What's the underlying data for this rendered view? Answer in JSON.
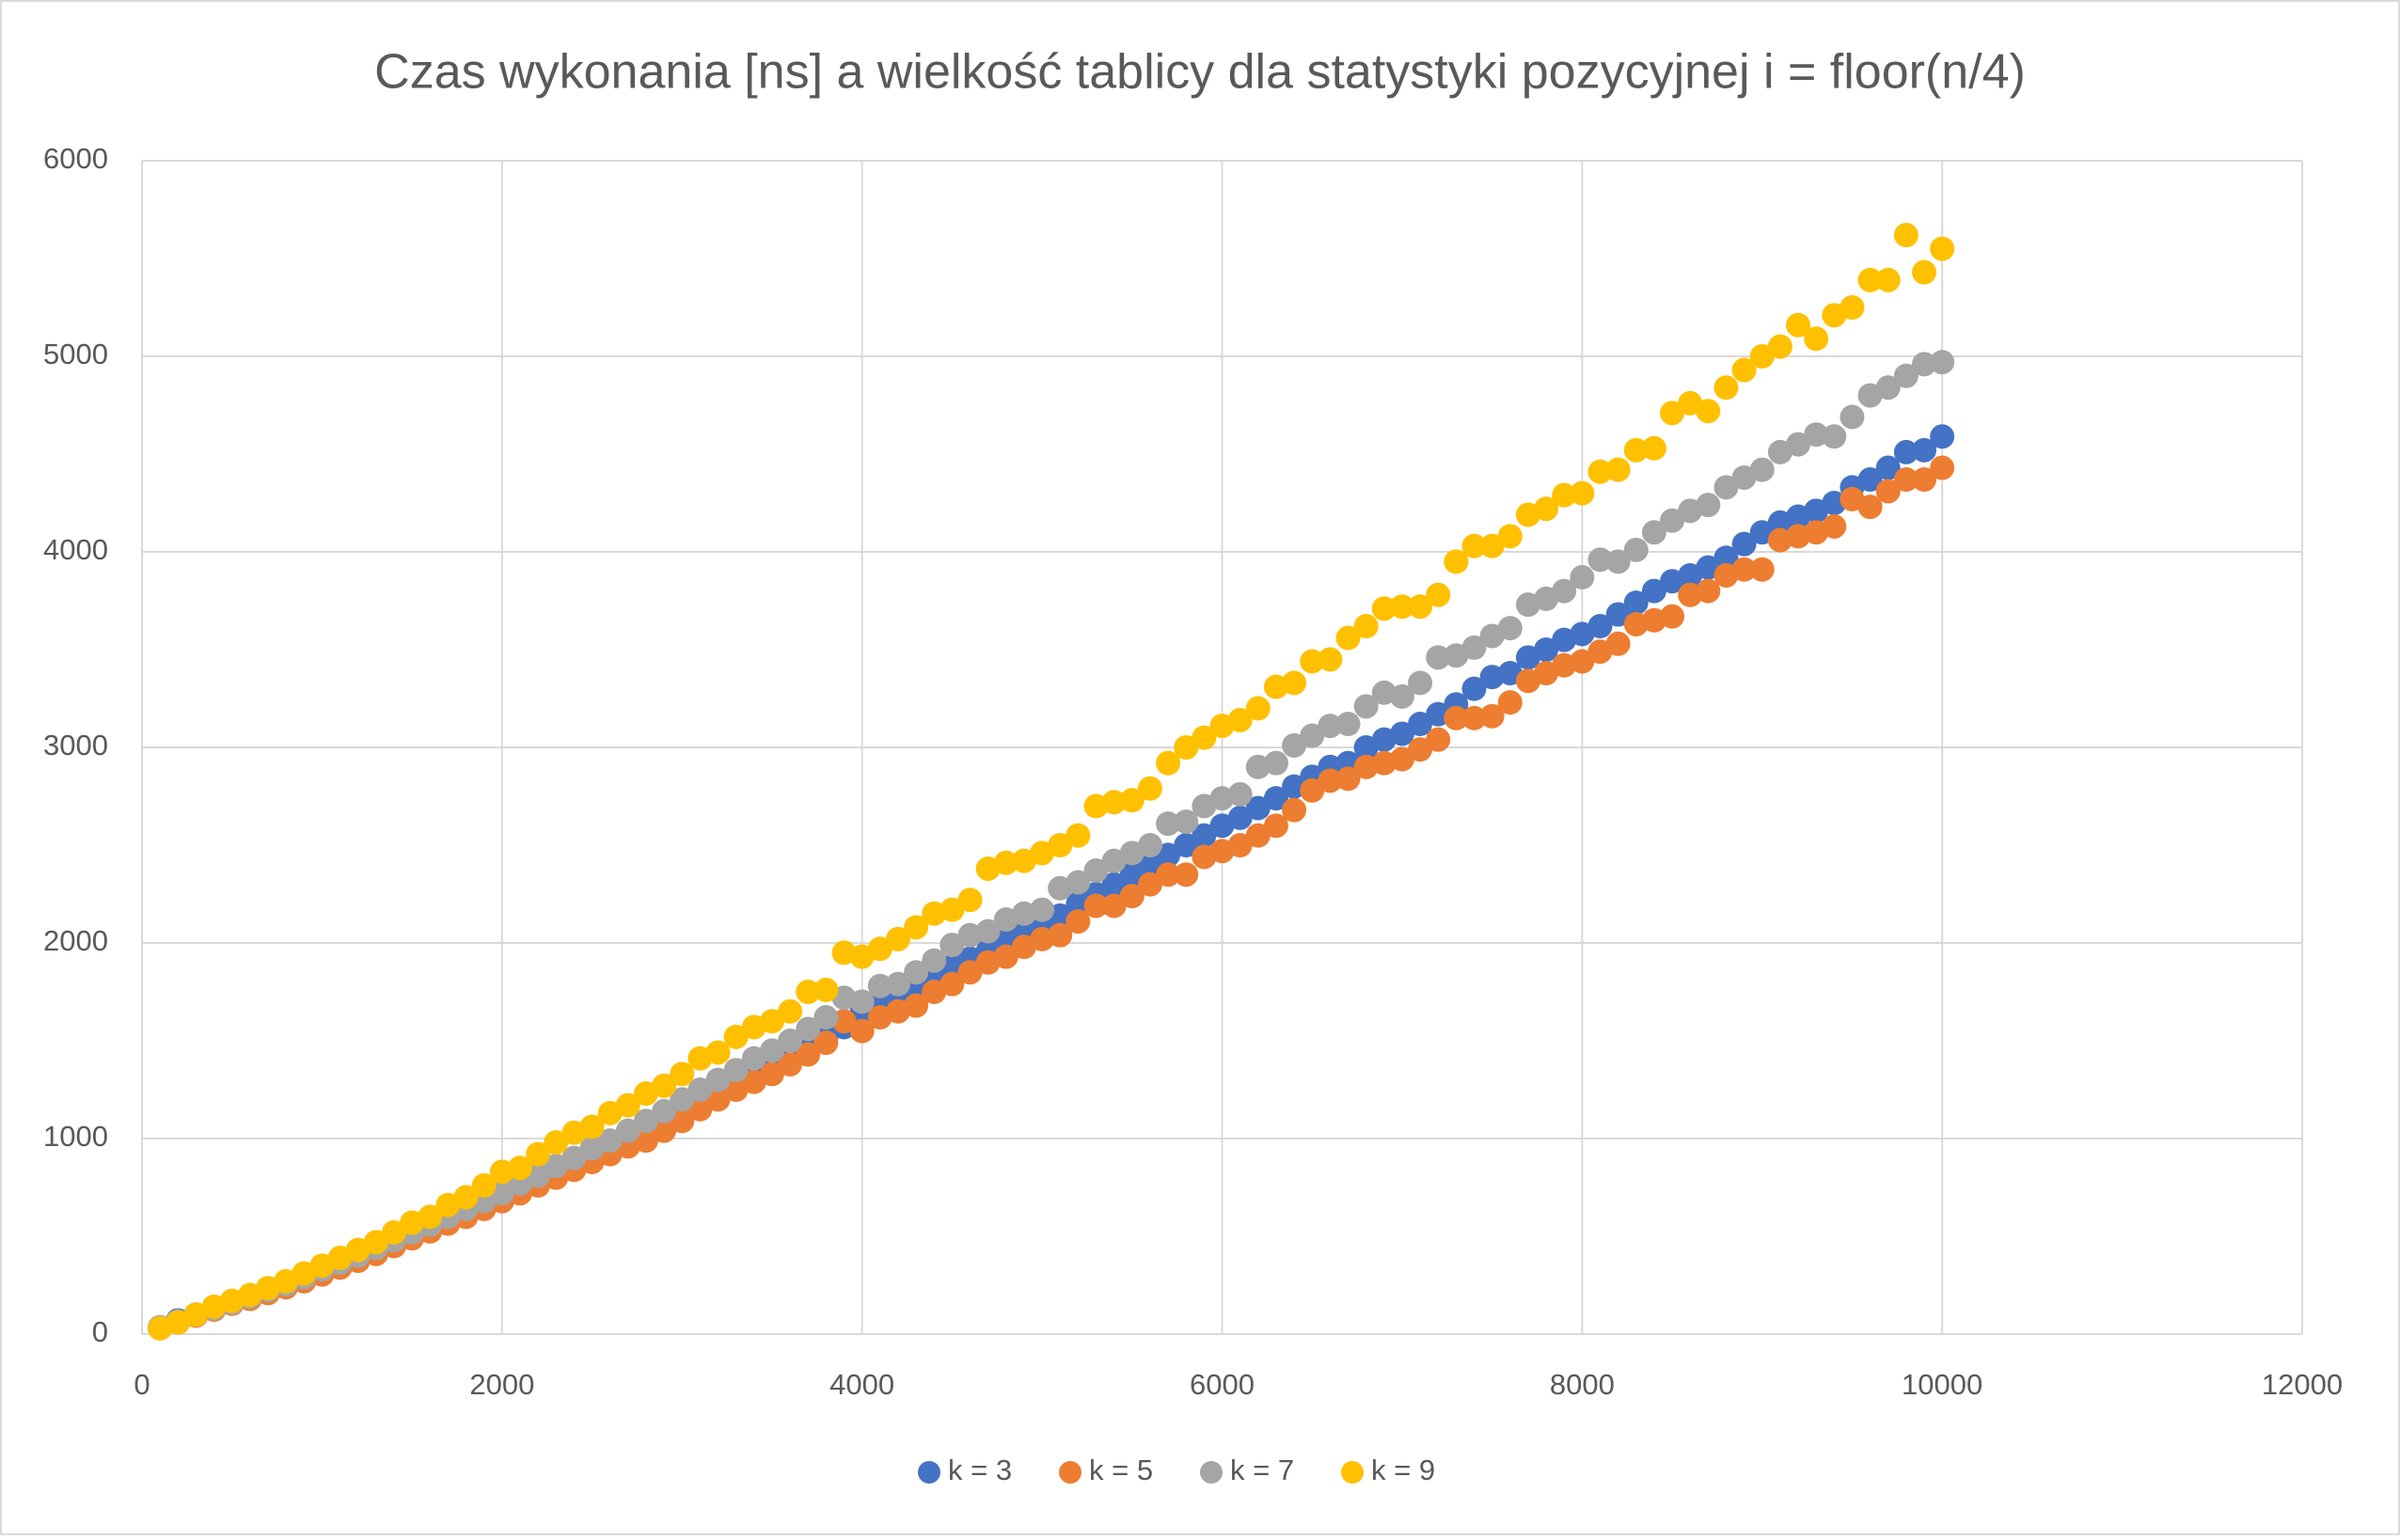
{
  "chart_data": {
    "type": "scatter",
    "title": "Czas wykonania [ns] a wielkość tablicy dla statystyki pozycyjnej i = floor(n/4)",
    "x": [
      100,
      200,
      300,
      400,
      500,
      600,
      700,
      800,
      900,
      1000,
      1100,
      1200,
      1300,
      1400,
      1500,
      1600,
      1700,
      1800,
      1900,
      2000,
      2100,
      2200,
      2300,
      2400,
      2500,
      2600,
      2700,
      2800,
      2900,
      3000,
      3100,
      3200,
      3300,
      3400,
      3500,
      3600,
      3700,
      3800,
      3900,
      4000,
      4100,
      4200,
      4300,
      4400,
      4500,
      4600,
      4700,
      4800,
      4900,
      5000,
      5100,
      5200,
      5300,
      5400,
      5500,
      5600,
      5700,
      5800,
      5900,
      6000,
      6100,
      6200,
      6300,
      6400,
      6500,
      6600,
      6700,
      6800,
      6900,
      7000,
      7100,
      7200,
      7300,
      7400,
      7500,
      7600,
      7700,
      7800,
      7900,
      8000,
      8100,
      8200,
      8300,
      8400,
      8500,
      8600,
      8700,
      8800,
      8900,
      9000,
      9100,
      9200,
      9300,
      9400,
      9500,
      9600,
      9700,
      9800,
      9900,
      10000
    ],
    "series": [
      {
        "name": "k = 3",
        "color": "#4472c4",
        "values": [
          35,
          70,
          100,
          130,
          160,
          190,
          215,
          245,
          280,
          320,
          355,
          390,
          430,
          465,
          505,
          545,
          580,
          620,
          660,
          700,
          740,
          780,
          825,
          865,
          910,
          950,
          995,
          1040,
          1090,
          1140,
          1185,
          1230,
          1275,
          1325,
          1370,
          1420,
          1470,
          1520,
          1570,
          1650,
          1700,
          1740,
          1790,
          1830,
          1880,
          1920,
          1960,
          2010,
          2050,
          2100,
          2140,
          2200,
          2250,
          2300,
          2350,
          2400,
          2450,
          2500,
          2550,
          2600,
          2640,
          2690,
          2740,
          2800,
          2850,
          2900,
          2920,
          3000,
          3040,
          3070,
          3120,
          3170,
          3220,
          3300,
          3360,
          3380,
          3460,
          3500,
          3550,
          3580,
          3620,
          3680,
          3740,
          3800,
          3850,
          3880,
          3920,
          3970,
          4040,
          4100,
          4150,
          4180,
          4210,
          4250,
          4330,
          4370,
          4430,
          4510,
          4520,
          4590
        ]
      },
      {
        "name": "k = 5",
        "color": "#ed7d31",
        "values": [
          30,
          60,
          95,
          125,
          155,
          180,
          210,
          240,
          270,
          305,
          340,
          375,
          410,
          450,
          490,
          525,
          565,
          600,
          640,
          680,
          720,
          760,
          800,
          840,
          880,
          920,
          960,
          990,
          1040,
          1090,
          1150,
          1200,
          1250,
          1290,
          1330,
          1380,
          1430,
          1490,
          1600,
          1550,
          1620,
          1650,
          1680,
          1750,
          1790,
          1850,
          1900,
          1930,
          1980,
          2020,
          2040,
          2110,
          2190,
          2190,
          2240,
          2300,
          2350,
          2350,
          2440,
          2470,
          2500,
          2550,
          2600,
          2680,
          2780,
          2830,
          2840,
          2900,
          2920,
          2940,
          2990,
          3040,
          3150,
          3150,
          3160,
          3230,
          3340,
          3380,
          3420,
          3440,
          3490,
          3530,
          3630,
          3650,
          3670,
          3780,
          3800,
          3880,
          3910,
          3910,
          4060,
          4080,
          4100,
          4130,
          4270,
          4230,
          4310,
          4370,
          4370,
          4430
        ]
      },
      {
        "name": "k = 7",
        "color": "#a5a5a5",
        "values": [
          35,
          65,
          100,
          130,
          160,
          190,
          225,
          255,
          290,
          330,
          365,
          400,
          440,
          480,
          520,
          560,
          600,
          640,
          680,
          720,
          770,
          810,
          860,
          900,
          950,
          990,
          1040,
          1090,
          1140,
          1200,
          1250,
          1300,
          1350,
          1410,
          1450,
          1500,
          1560,
          1620,
          1720,
          1700,
          1780,
          1790,
          1850,
          1910,
          1990,
          2040,
          2060,
          2120,
          2150,
          2170,
          2280,
          2310,
          2370,
          2420,
          2460,
          2500,
          2610,
          2620,
          2700,
          2740,
          2760,
          2900,
          2920,
          3010,
          3060,
          3110,
          3120,
          3210,
          3280,
          3260,
          3330,
          3460,
          3470,
          3510,
          3570,
          3610,
          3730,
          3760,
          3800,
          3870,
          3960,
          3950,
          4010,
          4100,
          4160,
          4210,
          4240,
          4330,
          4380,
          4420,
          4510,
          4550,
          4600,
          4590,
          4690,
          4800,
          4840,
          4900,
          4960,
          4970
        ]
      },
      {
        "name": "k = 9",
        "color": "#ffc000",
        "values": [
          30,
          60,
          100,
          140,
          170,
          200,
          235,
          270,
          310,
          350,
          390,
          430,
          470,
          520,
          570,
          600,
          660,
          700,
          760,
          830,
          850,
          920,
          980,
          1030,
          1060,
          1130,
          1170,
          1230,
          1270,
          1330,
          1410,
          1440,
          1520,
          1570,
          1600,
          1650,
          1750,
          1760,
          1950,
          1930,
          1970,
          2020,
          2080,
          2150,
          2170,
          2220,
          2380,
          2410,
          2420,
          2460,
          2500,
          2550,
          2700,
          2720,
          2730,
          2790,
          2920,
          3000,
          3050,
          3110,
          3140,
          3200,
          3310,
          3330,
          3440,
          3450,
          3560,
          3620,
          3710,
          3720,
          3720,
          3780,
          3950,
          4030,
          4030,
          4080,
          4190,
          4220,
          4290,
          4300,
          4410,
          4420,
          4520,
          4530,
          4710,
          4760,
          4720,
          4840,
          4930,
          5000,
          5050,
          5160,
          5090,
          5210,
          5250,
          5390,
          5390,
          5620,
          5430,
          5550
        ]
      }
    ],
    "xlim": [
      0,
      12000
    ],
    "xticks": [
      0,
      2000,
      4000,
      6000,
      8000,
      10000,
      12000
    ],
    "ylim": [
      0,
      6000
    ],
    "yticks": [
      0,
      1000,
      2000,
      3000,
      4000,
      5000,
      6000
    ],
    "grid": true,
    "legend": "bottom"
  }
}
